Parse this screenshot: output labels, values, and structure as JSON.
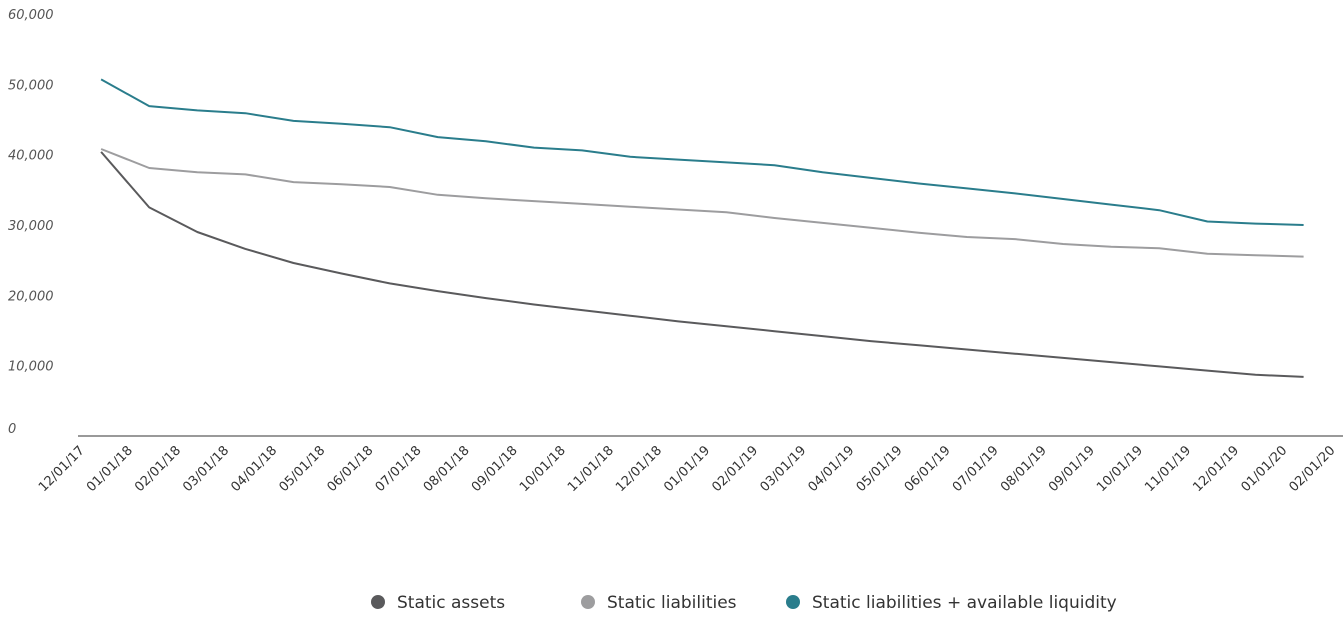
{
  "chart_data": {
    "type": "line",
    "x": [
      "12/01/17",
      "01/01/18",
      "02/01/18",
      "03/01/18",
      "04/01/18",
      "05/01/18",
      "06/01/18",
      "07/01/18",
      "08/01/18",
      "09/01/18",
      "10/01/18",
      "11/01/18",
      "12/01/18",
      "01/01/19",
      "02/01/19",
      "03/01/19",
      "04/01/19",
      "05/01/19",
      "06/01/19",
      "07/01/19",
      "08/01/19",
      "09/01/19",
      "10/01/19",
      "11/01/19",
      "12/01/19",
      "01/01/20",
      "02/01/20"
    ],
    "y_tick_labels": [
      "0",
      "10,000",
      "20,000",
      "30,000",
      "40,000",
      "50,000",
      "60,000"
    ],
    "y_tick_values": [
      0,
      10000,
      20000,
      30000,
      40000,
      50000,
      60000
    ],
    "ylim": [
      0,
      60000
    ],
    "grid": false,
    "legend_position": "bottom",
    "series": [
      {
        "name": "Static assets",
        "color": "#5a5a5c",
        "values": [
          null,
          40400,
          32500,
          29000,
          26600,
          24600,
          23100,
          21700,
          20600,
          19600,
          18700,
          17900,
          17100,
          16300,
          15600,
          14900,
          14200,
          13500,
          12900,
          12300,
          11700,
          11100,
          10500,
          9900,
          9300,
          8700,
          8400
        ]
      },
      {
        "name": "Static liabilities",
        "color": "#9d9d9f",
        "values": [
          null,
          40800,
          38100,
          37500,
          37200,
          36100,
          35800,
          35400,
          34300,
          33800,
          33400,
          33000,
          32600,
          32200,
          31800,
          31000,
          30300,
          29600,
          28900,
          28300,
          28000,
          27300,
          26900,
          26700,
          25900,
          25700,
          25500
        ]
      },
      {
        "name": "Static liabilities + available liquidity",
        "color": "#2a7d8c",
        "values": [
          null,
          50700,
          46900,
          46300,
          45900,
          44800,
          44400,
          43900,
          42500,
          41900,
          41000,
          40600,
          39700,
          39300,
          38900,
          38500,
          37500,
          36700,
          35900,
          35200,
          34500,
          33700,
          32900,
          32100,
          30500,
          30200,
          30000
        ]
      }
    ]
  }
}
